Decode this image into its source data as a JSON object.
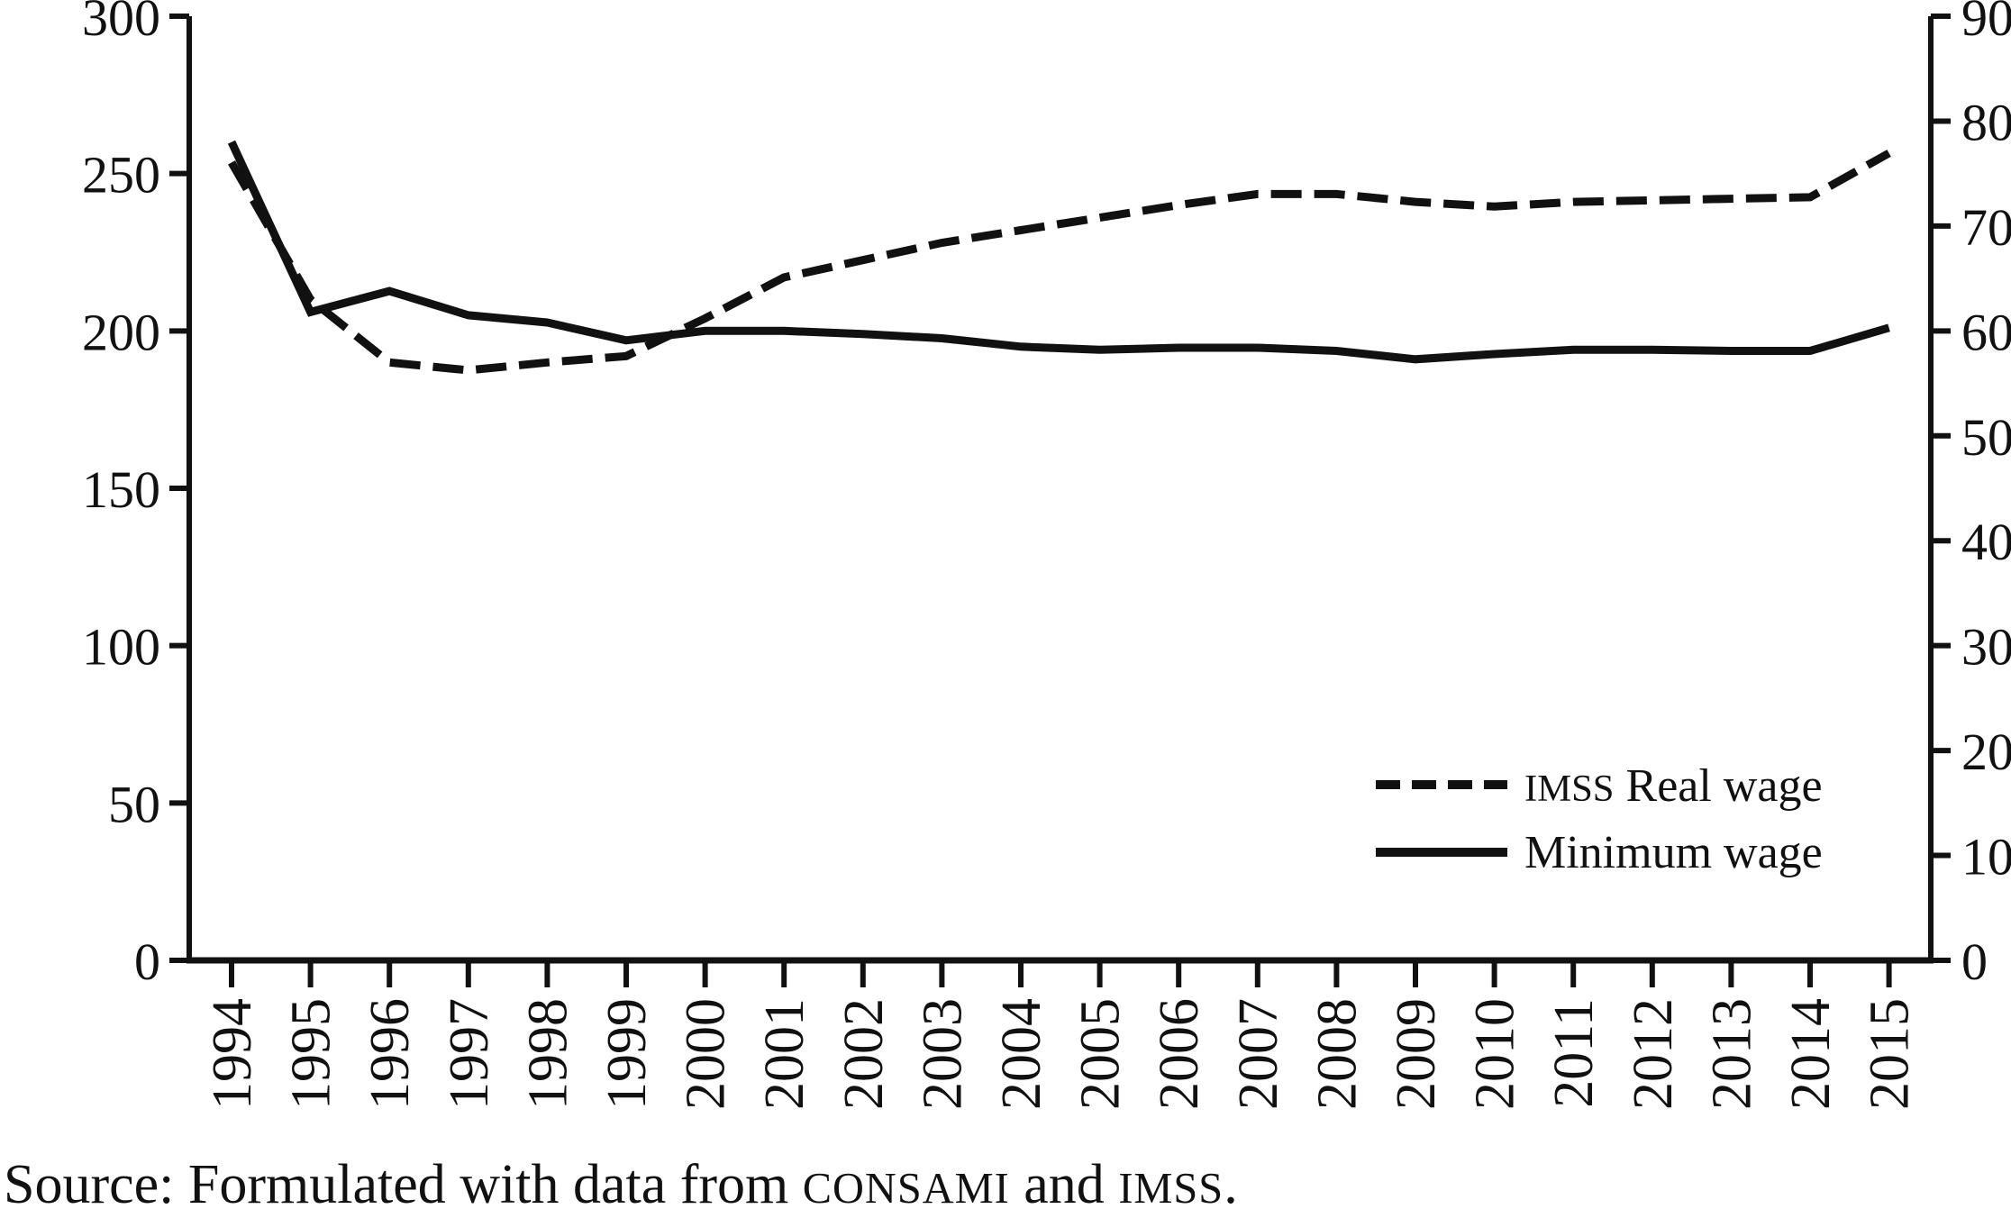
{
  "figure": {
    "background_color": "#ffffff",
    "ink_color": "#111111",
    "title": ""
  },
  "chart_data": {
    "type": "line",
    "title": "",
    "xlabel": "",
    "ylabel_left": "",
    "ylabel_right": "",
    "grid": false,
    "legend_position": "lower right",
    "x": [
      1994,
      1995,
      1996,
      1997,
      1998,
      1999,
      2000,
      2001,
      2002,
      2003,
      2004,
      2005,
      2006,
      2007,
      2008,
      2009,
      2010,
      2011,
      2012,
      2013,
      2014,
      2015
    ],
    "x_tick_labels": [
      "1994",
      "1995",
      "1996",
      "1997",
      "1998",
      "1999",
      "2000",
      "2001",
      "2002",
      "2003",
      "2004",
      "2005",
      "2006",
      "2007",
      "2008",
      "2009",
      "2010",
      "2011",
      "2012",
      "2013",
      "2014",
      "2015"
    ],
    "y_left_axis": {
      "range": [
        0,
        300
      ],
      "ticks": [
        0,
        50,
        100,
        150,
        200,
        250,
        300
      ]
    },
    "y_right_axis": {
      "range": [
        0,
        90
      ],
      "ticks": [
        0,
        10,
        20,
        30,
        40,
        50,
        60,
        70,
        80,
        90
      ]
    },
    "series": [
      {
        "name": "IMSS Real wage",
        "style": "dashed",
        "axis": "left",
        "values": [
          253.5,
          210,
          190,
          187.5,
          190,
          192,
          204,
          217,
          222.5,
          228,
          232,
          236,
          240,
          243.5,
          243.5,
          241,
          239.5,
          241,
          241.5,
          242,
          242.5,
          256.5
        ]
      },
      {
        "name": "Minimum wage",
        "style": "solid",
        "axis": "right",
        "values": [
          78.0,
          61.8,
          63.8,
          61.5,
          60.8,
          59.1,
          60.0,
          60.0,
          59.7,
          59.3,
          58.5,
          58.2,
          58.4,
          58.4,
          58.1,
          57.3,
          57.8,
          58.2,
          58.2,
          58.1,
          58.1,
          60.3
        ]
      }
    ]
  },
  "legend": {
    "items": [
      {
        "label_sc": "IMSS",
        "label_rest": " Real wage",
        "style": "dashed"
      },
      {
        "label_sc": "",
        "label_rest": "Minimum wage",
        "style": "solid"
      }
    ]
  },
  "source_note": {
    "part1": "Source: Formulated with data from ",
    "org1": "CONSAMI",
    "part2": " and ",
    "org2": "IMSS",
    "part3": "."
  }
}
